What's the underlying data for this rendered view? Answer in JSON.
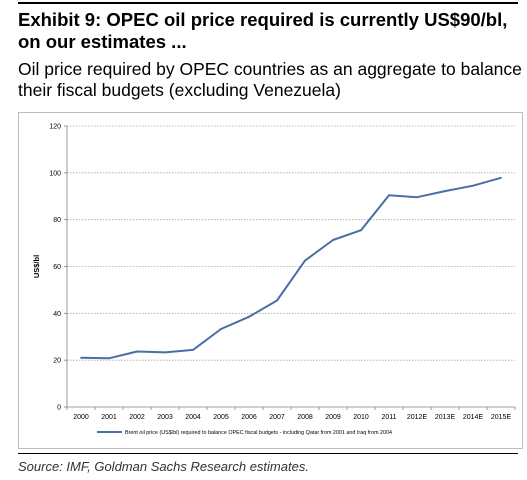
{
  "header": {
    "title": "Exhibit 9: OPEC oil price required is currently US$90/bl, on our estimates ...",
    "subtitle": "Oil price required by OPEC countries as an aggregate to balance their fiscal budgets (excluding Venezuela)"
  },
  "footer": {
    "source": "Source: IMF, Goldman Sachs Research estimates."
  },
  "colors": {
    "series": "#4a6ea8",
    "grid": "#a6a6a6",
    "axis": "#808080"
  },
  "chart_data": {
    "type": "line",
    "title": "",
    "xlabel": "",
    "ylabel": "US$/bl",
    "categories": [
      "2000",
      "2001",
      "2002",
      "2003",
      "2004",
      "2005",
      "2006",
      "2007",
      "2008",
      "2009",
      "2010",
      "2011",
      "2012E",
      "2013E",
      "2014E",
      "2015E"
    ],
    "series": [
      {
        "name": "Brent oil price (US$/bl) required to balance OPEC fiscal budgets - including Qatar from 2001 and Iraq from 2004",
        "values": [
          21,
          20.8,
          23.7,
          23.3,
          24.4,
          33.3,
          38.5,
          45.5,
          62.5,
          71.3,
          75.5,
          90.4,
          89.6,
          92.2,
          94.5,
          97.9
        ]
      }
    ],
    "ylim": [
      0,
      120
    ],
    "yticks": [
      0,
      20,
      40,
      60,
      80,
      100,
      120
    ],
    "grid": true,
    "legend_position": "bottom"
  }
}
